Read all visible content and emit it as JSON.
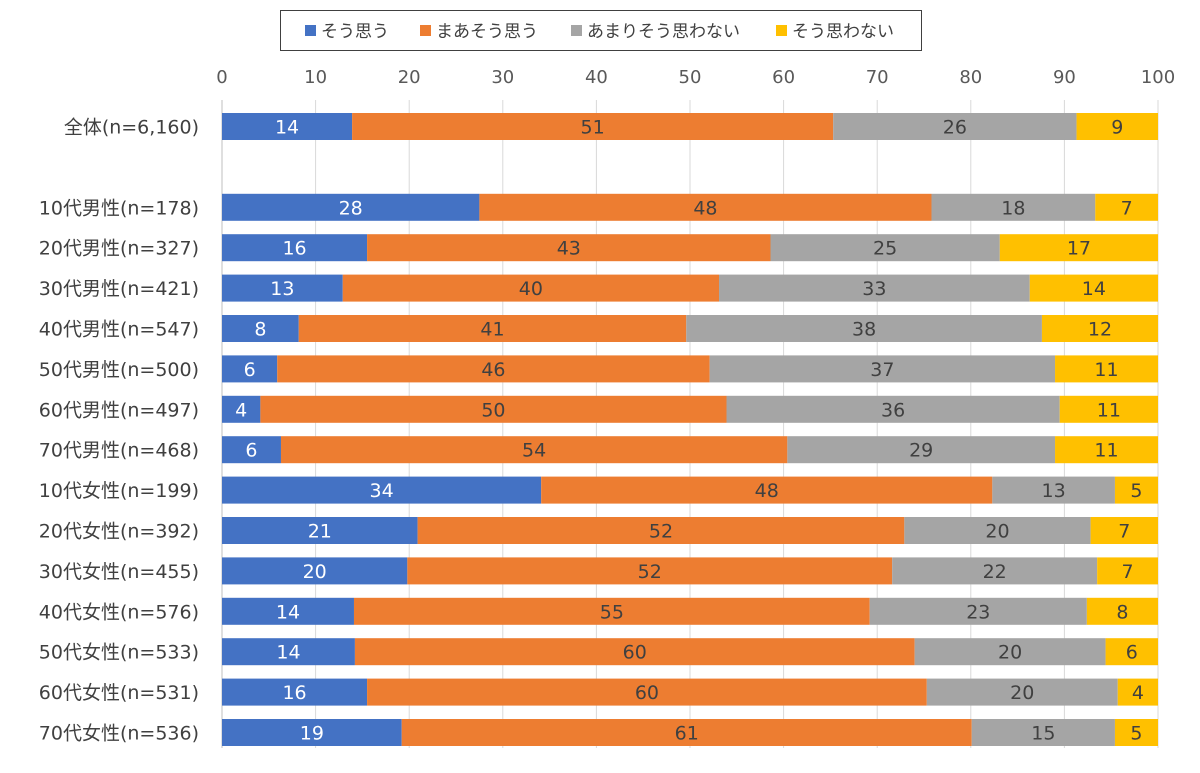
{
  "chart_data": {
    "type": "bar",
    "orientation": "horizontal",
    "stacked": true,
    "title": "",
    "xlabel": "",
    "ylabel": "",
    "xlim": [
      0,
      100
    ],
    "xticks": [
      0,
      10,
      20,
      30,
      40,
      50,
      60,
      70,
      80,
      90,
      100
    ],
    "grid": true,
    "legend_position": "top",
    "categories": [
      "全体(n=6,160)",
      "",
      "10代男性(n=178)",
      "20代男性(n=327)",
      "30代男性(n=421)",
      "40代男性(n=547)",
      "50代男性(n=500)",
      "60代男性(n=497)",
      "70代男性(n=468)",
      "10代女性(n=199)",
      "20代女性(n=392)",
      "30代女性(n=455)",
      "40代女性(n=576)",
      "50代女性(n=533)",
      "60代女性(n=531)",
      "70代女性(n=536)"
    ],
    "series": [
      {
        "name": "そう思う",
        "color": "#4472C4",
        "label_color": "#FFFFFF",
        "values": [
          13.9,
          null,
          27.5,
          15.5,
          12.9,
          8.2,
          5.9,
          4.1,
          6.3,
          34.1,
          20.9,
          19.8,
          14.1,
          14.2,
          15.5,
          19.2
        ]
      },
      {
        "name": "まあそう思う",
        "color": "#ED7D31",
        "label_color": "#404040",
        "values": [
          51.4,
          null,
          48.3,
          43.1,
          40.2,
          41.4,
          46.2,
          49.8,
          54.1,
          48.2,
          52.0,
          51.8,
          55.1,
          59.8,
          59.8,
          60.9
        ]
      },
      {
        "name": "あまりそう思わない",
        "color": "#A5A5A5",
        "label_color": "#404040",
        "values": [
          26.0,
          null,
          17.5,
          24.5,
          33.2,
          38.0,
          36.9,
          35.6,
          28.6,
          13.1,
          19.9,
          21.9,
          23.2,
          20.4,
          20.4,
          15.3
        ]
      },
      {
        "name": "そう思わない",
        "color": "#FFC000",
        "label_color": "#404040",
        "values": [
          8.7,
          null,
          6.7,
          16.9,
          13.7,
          12.4,
          11.0,
          10.5,
          11.0,
          4.6,
          7.2,
          6.5,
          7.6,
          5.6,
          4.3,
          4.6
        ]
      }
    ]
  }
}
